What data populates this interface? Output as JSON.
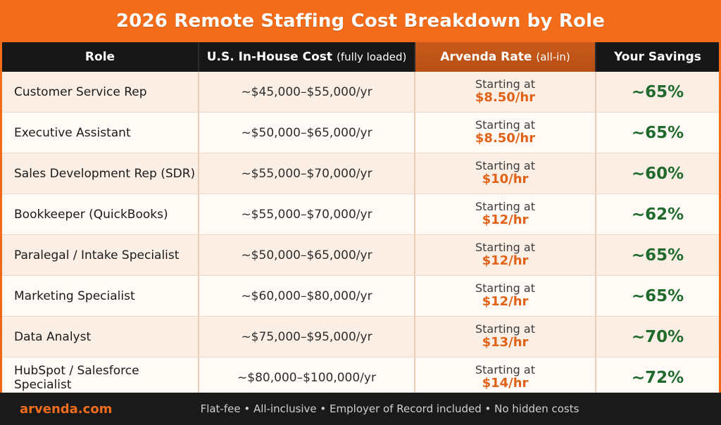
{
  "title": "2026 Remote Staffing Cost Breakdown by Role",
  "headers": {
    "role": "Role",
    "us_cost": "U.S. In-House Cost",
    "us_cost_note": "(fully loaded)",
    "arvenda_rate": "Arvenda Rate",
    "arvenda_rate_note": "(all-in)",
    "savings": "Your Savings"
  },
  "rows": [
    {
      "role": "Customer Service Rep",
      "cost": "~$45,000–$55,000/yr",
      "rate_label": "Starting at",
      "rate": "$8.50/hr",
      "savings": "~65%"
    },
    {
      "role": "Executive Assistant",
      "cost": "~$50,000–$65,000/yr",
      "rate_label": "Starting at",
      "rate": "$8.50/hr",
      "savings": "~65%"
    },
    {
      "role": "Sales Development Rep (SDR)",
      "cost": "~$55,000–$70,000/yr",
      "rate_label": "Starting at",
      "rate": "$10/hr",
      "savings": "~60%"
    },
    {
      "role": "Bookkeeper (QuickBooks)",
      "cost": "~$55,000–$70,000/yr",
      "rate_label": "Starting at",
      "rate": "$12/hr",
      "savings": "~62%"
    },
    {
      "role": "Paralegal / Intake Specialist",
      "cost": "~$50,000–$65,000/yr",
      "rate_label": "Starting at",
      "rate": "$12/hr",
      "savings": "~65%"
    },
    {
      "role": "Marketing Specialist",
      "cost": "~$60,000–$80,000/yr",
      "rate_label": "Starting at",
      "rate": "$12/hr",
      "savings": "~65%"
    },
    {
      "role": "Data Analyst",
      "cost": "~$75,000–$95,000/yr",
      "rate_label": "Starting at",
      "rate": "$13/hr",
      "savings": "~70%"
    },
    {
      "role": "HubSpot / Salesforce Specialist",
      "cost": "~$80,000–$100,000/yr",
      "rate_label": "Starting at",
      "rate": "$14/hr",
      "savings": "~72%"
    }
  ],
  "footer": {
    "brand": "arvenda.com",
    "note": "Flat-fee • All-inclusive • Employer of Record included • No hidden costs"
  },
  "colors": {
    "background": "#f06b1a",
    "header_bg": "#171717",
    "accent_header": "#c85a1b",
    "rate_text": "#e16216",
    "savings_text": "#1f6a2c",
    "footer_bg": "#1a1a1a"
  }
}
